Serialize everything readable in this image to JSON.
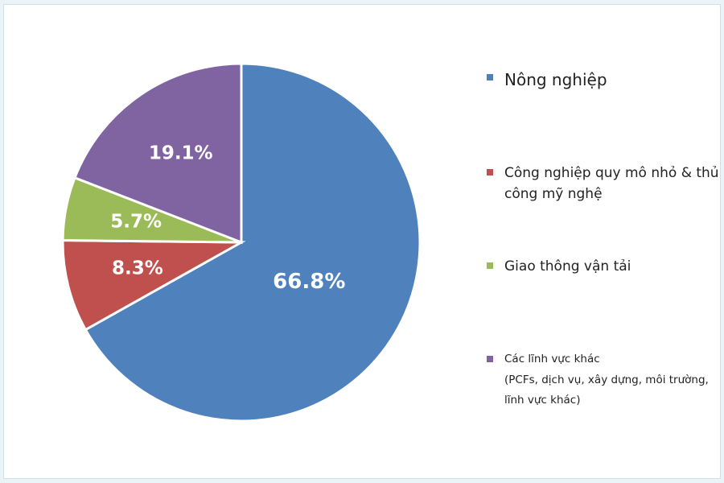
{
  "chart_data": {
    "type": "pie",
    "slices": [
      {
        "name": "Nông nghiệp",
        "value": 66.8,
        "label": "66.8%",
        "color": "#4f81bd"
      },
      {
        "name": "Công nghiệp quy mô nhỏ & thủ công mỹ nghệ",
        "value": 8.3,
        "label": "8.3%",
        "color": "#c0504d"
      },
      {
        "name": "Giao thông vận tải",
        "value": 5.7,
        "label": "5.7%",
        "color": "#9bbb59"
      },
      {
        "name": "Các lĩnh vực khác",
        "subtitle": "(PCFs, dịch vụ, xây dựng, môi trường, lĩnh vực khác)",
        "value": 19.1,
        "label": "19.1%",
        "color": "#8064a2"
      }
    ],
    "start_angle_deg": 0,
    "direction": "clockwise",
    "legend_position": "right"
  },
  "legend": {
    "items": [
      {
        "label": "Nông nghiệp",
        "color": "#4f81bd"
      },
      {
        "label": "Công nghiệp quy mô nhỏ & thủ công mỹ nghệ",
        "color": "#c0504d"
      },
      {
        "label": "Giao thông vận tải",
        "color": "#9bbb59"
      },
      {
        "label": "Các lĩnh vực khác",
        "sub": "(PCFs, dịch vụ, xây dựng, môi trường, lĩnh vực khác)",
        "color": "#8064a2"
      }
    ]
  }
}
